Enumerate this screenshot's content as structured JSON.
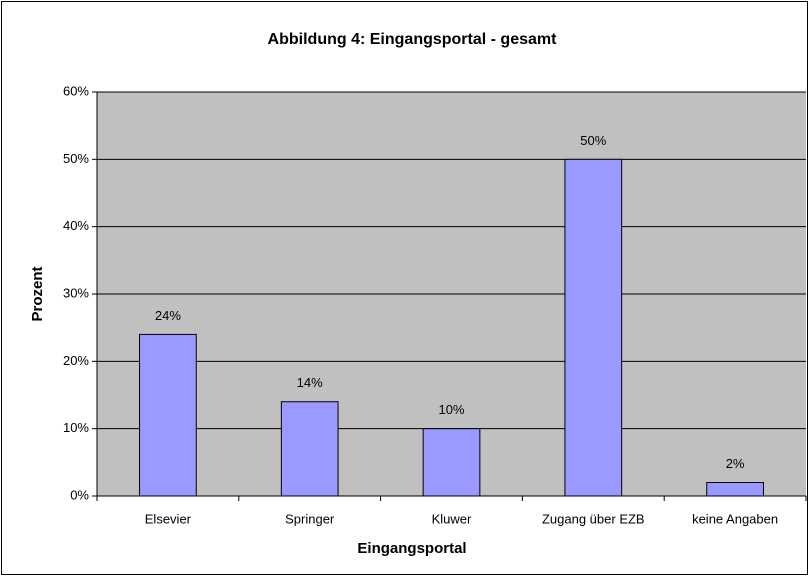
{
  "chart_data": {
    "type": "bar",
    "title": "Abbildung 4: Eingangsportal - gesamt",
    "x_label": "Eingangsportal",
    "y_label": "Prozent",
    "categories": [
      "Elsevier",
      "Springer",
      "Kluwer",
      "Zugang über EZB",
      "keine Angaben"
    ],
    "values": [
      24,
      14,
      10,
      50,
      2
    ],
    "value_labels": [
      "24%",
      "14%",
      "10%",
      "50%",
      "2%"
    ],
    "color": "#9999ff",
    "ylim": [
      0,
      60
    ],
    "yticks": [
      {
        "value": 0,
        "label": "0%"
      },
      {
        "value": 10,
        "label": "10%"
      },
      {
        "value": 20,
        "label": "20%"
      },
      {
        "value": 30,
        "label": "30%"
      },
      {
        "value": 40,
        "label": "40%"
      },
      {
        "value": 50,
        "label": "50%"
      },
      {
        "value": 60,
        "label": "60%"
      }
    ],
    "grid": true
  }
}
